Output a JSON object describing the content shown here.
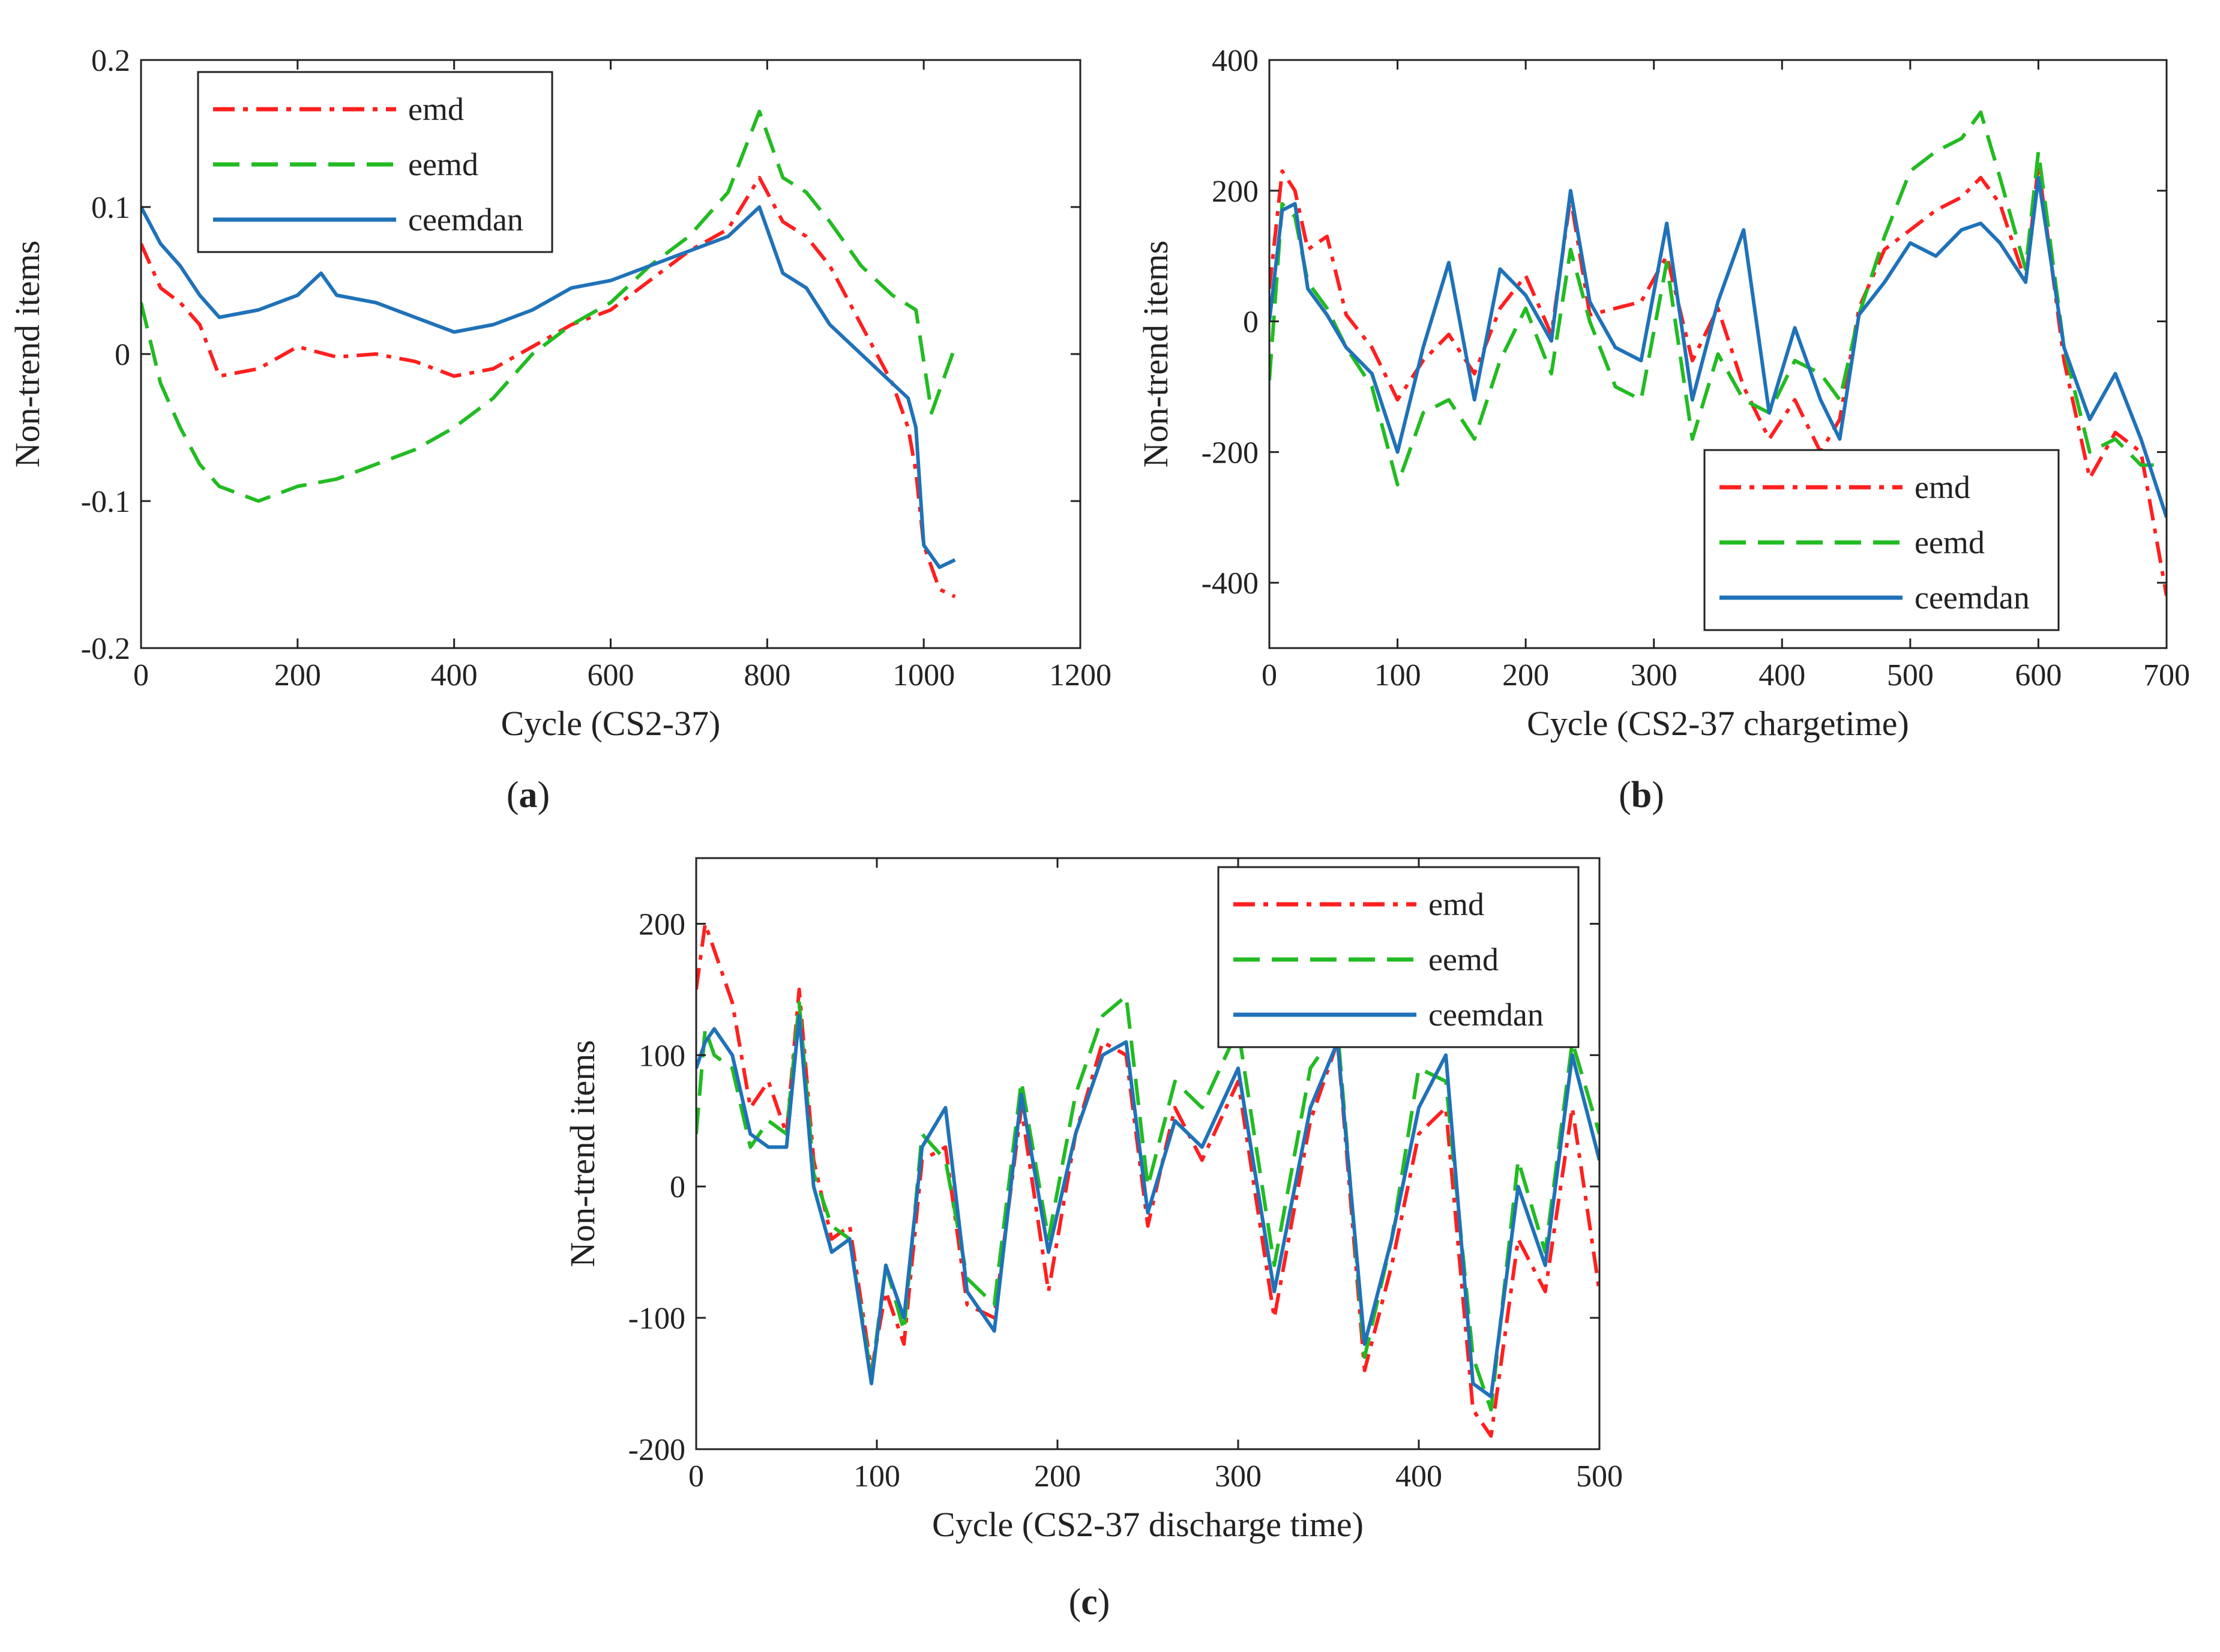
{
  "figure": {
    "colors": {
      "emd": "#ff1f1f",
      "eemd": "#22bb22",
      "ceemdan": "#1f72b8",
      "axis": "#222222"
    }
  },
  "chart_data": [
    {
      "id": "a",
      "panel_label": "a",
      "type": "line",
      "title": "",
      "xlabel": "Cycle (CS2-37)",
      "ylabel": "Non-trend items",
      "xlim": [
        0,
        1200
      ],
      "ylim": [
        -0.2,
        0.2
      ],
      "xticks": [
        0,
        200,
        400,
        600,
        800,
        1000,
        1200
      ],
      "yticks": [
        -0.2,
        -0.1,
        0,
        0.1,
        0.2
      ],
      "xtick_labels": [
        "0",
        "200",
        "400",
        "600",
        "800",
        "1000",
        "1200"
      ],
      "ytick_labels": [
        "-0.2",
        "-0.1",
        "0",
        "0.1",
        "0.2"
      ],
      "grid": false,
      "legend": {
        "position": "top-left",
        "entries": [
          "emd",
          "eemd",
          "ceemdan"
        ]
      },
      "series": [
        {
          "name": "emd",
          "style": "dashdot",
          "color": "#ff1f1f",
          "x": [
            0,
            25,
            50,
            75,
            100,
            150,
            200,
            250,
            300,
            350,
            400,
            450,
            500,
            550,
            600,
            650,
            700,
            750,
            790,
            820,
            850,
            880,
            920,
            960,
            980,
            990,
            1000,
            1020,
            1040
          ],
          "y": [
            0.075,
            0.045,
            0.035,
            0.02,
            -0.015,
            -0.01,
            0.005,
            -0.002,
            0.0,
            -0.005,
            -0.015,
            -0.01,
            0.005,
            0.02,
            0.03,
            0.05,
            0.07,
            0.085,
            0.12,
            0.09,
            0.08,
            0.06,
            0.02,
            -0.02,
            -0.05,
            -0.08,
            -0.13,
            -0.16,
            -0.165
          ]
        },
        {
          "name": "eemd",
          "style": "dashed",
          "color": "#22bb22",
          "x": [
            0,
            25,
            50,
            75,
            100,
            150,
            200,
            250,
            300,
            350,
            400,
            450,
            500,
            550,
            600,
            650,
            700,
            750,
            790,
            820,
            850,
            880,
            920,
            960,
            990,
            1010,
            1040
          ],
          "y": [
            0.035,
            -0.02,
            -0.05,
            -0.075,
            -0.09,
            -0.1,
            -0.09,
            -0.085,
            -0.075,
            -0.065,
            -0.05,
            -0.03,
            0.0,
            0.02,
            0.035,
            0.06,
            0.08,
            0.11,
            0.165,
            0.12,
            0.11,
            0.09,
            0.06,
            0.04,
            0.03,
            -0.04,
            0.005
          ]
        },
        {
          "name": "ceemdan",
          "style": "solid",
          "color": "#1f72b8",
          "x": [
            0,
            25,
            50,
            75,
            100,
            150,
            200,
            230,
            250,
            300,
            350,
            400,
            450,
            500,
            550,
            600,
            650,
            700,
            750,
            790,
            820,
            850,
            880,
            920,
            960,
            980,
            990,
            1000,
            1020,
            1040
          ],
          "y": [
            0.1,
            0.075,
            0.06,
            0.04,
            0.025,
            0.03,
            0.04,
            0.055,
            0.04,
            0.035,
            0.025,
            0.015,
            0.02,
            0.03,
            0.045,
            0.05,
            0.06,
            0.07,
            0.08,
            0.1,
            0.055,
            0.045,
            0.02,
            0.0,
            -0.02,
            -0.03,
            -0.05,
            -0.13,
            -0.145,
            -0.14
          ]
        }
      ]
    },
    {
      "id": "b",
      "panel_label": "b",
      "type": "line",
      "title": "",
      "xlabel": "Cycle (CS2-37 chargetime)",
      "ylabel": "Non-trend items",
      "xlim": [
        0,
        700
      ],
      "ylim": [
        -500,
        400
      ],
      "xticks": [
        0,
        100,
        200,
        300,
        400,
        500,
        600,
        700
      ],
      "yticks": [
        -400,
        -200,
        0,
        200,
        400
      ],
      "xtick_labels": [
        "0",
        "100",
        "200",
        "300",
        "400",
        "500",
        "600",
        "700"
      ],
      "ytick_labels": [
        "-400",
        "-200",
        "0",
        "200",
        "400"
      ],
      "grid": false,
      "legend": {
        "position": "bottom-right",
        "entries": [
          "emd",
          "eemd",
          "ceemdan"
        ]
      },
      "series": [
        {
          "name": "emd",
          "style": "dashdot",
          "color": "#ff1f1f",
          "x": [
            0,
            10,
            20,
            30,
            45,
            60,
            80,
            100,
            120,
            140,
            160,
            180,
            200,
            220,
            235,
            250,
            270,
            290,
            310,
            330,
            350,
            370,
            390,
            410,
            430,
            445,
            460,
            480,
            500,
            520,
            540,
            555,
            570,
            590,
            600,
            620,
            640,
            660,
            680,
            700
          ],
          "y": [
            50,
            230,
            200,
            110,
            130,
            10,
            -40,
            -120,
            -60,
            -20,
            -80,
            20,
            70,
            -20,
            190,
            10,
            20,
            30,
            100,
            -60,
            20,
            -100,
            -180,
            -120,
            -200,
            -150,
            20,
            110,
            140,
            170,
            190,
            220,
            180,
            60,
            240,
            -60,
            -240,
            -170,
            -200,
            -420
          ]
        },
        {
          "name": "eemd",
          "style": "dashed",
          "color": "#22bb22",
          "x": [
            0,
            10,
            20,
            30,
            45,
            60,
            80,
            100,
            120,
            140,
            160,
            180,
            200,
            220,
            235,
            250,
            270,
            290,
            310,
            330,
            350,
            370,
            390,
            410,
            430,
            445,
            460,
            480,
            500,
            520,
            540,
            555,
            570,
            590,
            600,
            620,
            640,
            660,
            680,
            700
          ],
          "y": [
            -90,
            180,
            160,
            60,
            20,
            -40,
            -100,
            -250,
            -140,
            -120,
            -180,
            -60,
            20,
            -80,
            110,
            0,
            -100,
            -120,
            90,
            -180,
            -50,
            -120,
            -140,
            -60,
            -80,
            -120,
            10,
            130,
            230,
            260,
            280,
            320,
            220,
            80,
            260,
            -40,
            -200,
            -180,
            -220,
            -220
          ]
        },
        {
          "name": "ceemdan",
          "style": "solid",
          "color": "#1f72b8",
          "x": [
            0,
            10,
            20,
            30,
            45,
            60,
            80,
            100,
            120,
            140,
            160,
            180,
            200,
            220,
            235,
            250,
            270,
            290,
            310,
            330,
            350,
            370,
            390,
            410,
            430,
            445,
            460,
            480,
            500,
            520,
            540,
            555,
            570,
            590,
            600,
            620,
            640,
            660,
            680,
            700
          ],
          "y": [
            0,
            170,
            180,
            50,
            10,
            -40,
            -80,
            -200,
            -40,
            90,
            -120,
            80,
            40,
            -30,
            200,
            30,
            -40,
            -60,
            150,
            -120,
            30,
            140,
            -140,
            -10,
            -120,
            -180,
            10,
            60,
            120,
            100,
            140,
            150,
            120,
            60,
            220,
            -40,
            -150,
            -80,
            -180,
            -300
          ]
        }
      ]
    },
    {
      "id": "c",
      "panel_label": "c",
      "type": "line",
      "title": "",
      "xlabel": "Cycle (CS2-37 discharge time)",
      "ylabel": "Non-trend items",
      "xlim": [
        0,
        500
      ],
      "ylim": [
        -200,
        250
      ],
      "xticks": [
        0,
        100,
        200,
        300,
        400,
        500
      ],
      "yticks": [
        -200,
        -100,
        0,
        100,
        200
      ],
      "xtick_labels": [
        "0",
        "100",
        "200",
        "300",
        "400",
        "500"
      ],
      "ytick_labels": [
        "-200",
        "-100",
        "0",
        "100",
        "200"
      ],
      "grid": false,
      "legend": {
        "position": "top-right",
        "entries": [
          "emd",
          "eemd",
          "ceemdan"
        ]
      },
      "series": [
        {
          "name": "emd",
          "style": "dashdot",
          "color": "#ff1f1f",
          "x": [
            0,
            5,
            10,
            20,
            30,
            40,
            50,
            57,
            65,
            75,
            85,
            97,
            105,
            115,
            125,
            138,
            150,
            165,
            180,
            195,
            210,
            225,
            238,
            250,
            265,
            280,
            300,
            320,
            340,
            355,
            370,
            385,
            400,
            415,
            430,
            440,
            455,
            470,
            485,
            500
          ],
          "y": [
            150,
            200,
            180,
            140,
            60,
            80,
            40,
            150,
            20,
            -40,
            -30,
            -140,
            -80,
            -120,
            20,
            30,
            -90,
            -100,
            60,
            -80,
            40,
            110,
            100,
            -30,
            60,
            20,
            80,
            -100,
            50,
            110,
            -140,
            -60,
            40,
            60,
            -170,
            -190,
            -40,
            -80,
            60,
            -80
          ]
        },
        {
          "name": "eemd",
          "style": "dashed",
          "color": "#22bb22",
          "x": [
            0,
            5,
            10,
            20,
            30,
            40,
            50,
            57,
            65,
            75,
            85,
            97,
            105,
            115,
            125,
            138,
            150,
            165,
            180,
            195,
            210,
            225,
            238,
            250,
            265,
            280,
            300,
            320,
            340,
            355,
            370,
            385,
            400,
            415,
            430,
            440,
            455,
            470,
            485,
            500
          ],
          "y": [
            40,
            120,
            100,
            90,
            30,
            50,
            40,
            140,
            10,
            -30,
            -40,
            -145,
            -60,
            -110,
            40,
            20,
            -70,
            -90,
            80,
            -40,
            70,
            130,
            145,
            0,
            80,
            60,
            120,
            -60,
            90,
            120,
            -130,
            -40,
            90,
            80,
            -130,
            -170,
            20,
            -50,
            110,
            40
          ]
        },
        {
          "name": "ceemdan",
          "style": "solid",
          "color": "#1f72b8",
          "x": [
            0,
            5,
            10,
            20,
            30,
            40,
            50,
            57,
            65,
            75,
            85,
            97,
            105,
            115,
            125,
            138,
            150,
            165,
            180,
            195,
            210,
            225,
            238,
            250,
            265,
            280,
            300,
            320,
            340,
            355,
            370,
            385,
            400,
            415,
            430,
            440,
            455,
            470,
            485,
            500
          ],
          "y": [
            90,
            110,
            120,
            100,
            40,
            30,
            30,
            130,
            0,
            -50,
            -40,
            -150,
            -60,
            -100,
            30,
            60,
            -80,
            -110,
            70,
            -50,
            40,
            100,
            110,
            -20,
            50,
            30,
            90,
            -80,
            60,
            110,
            -120,
            -40,
            60,
            100,
            -150,
            -160,
            0,
            -60,
            100,
            20
          ]
        }
      ]
    }
  ]
}
